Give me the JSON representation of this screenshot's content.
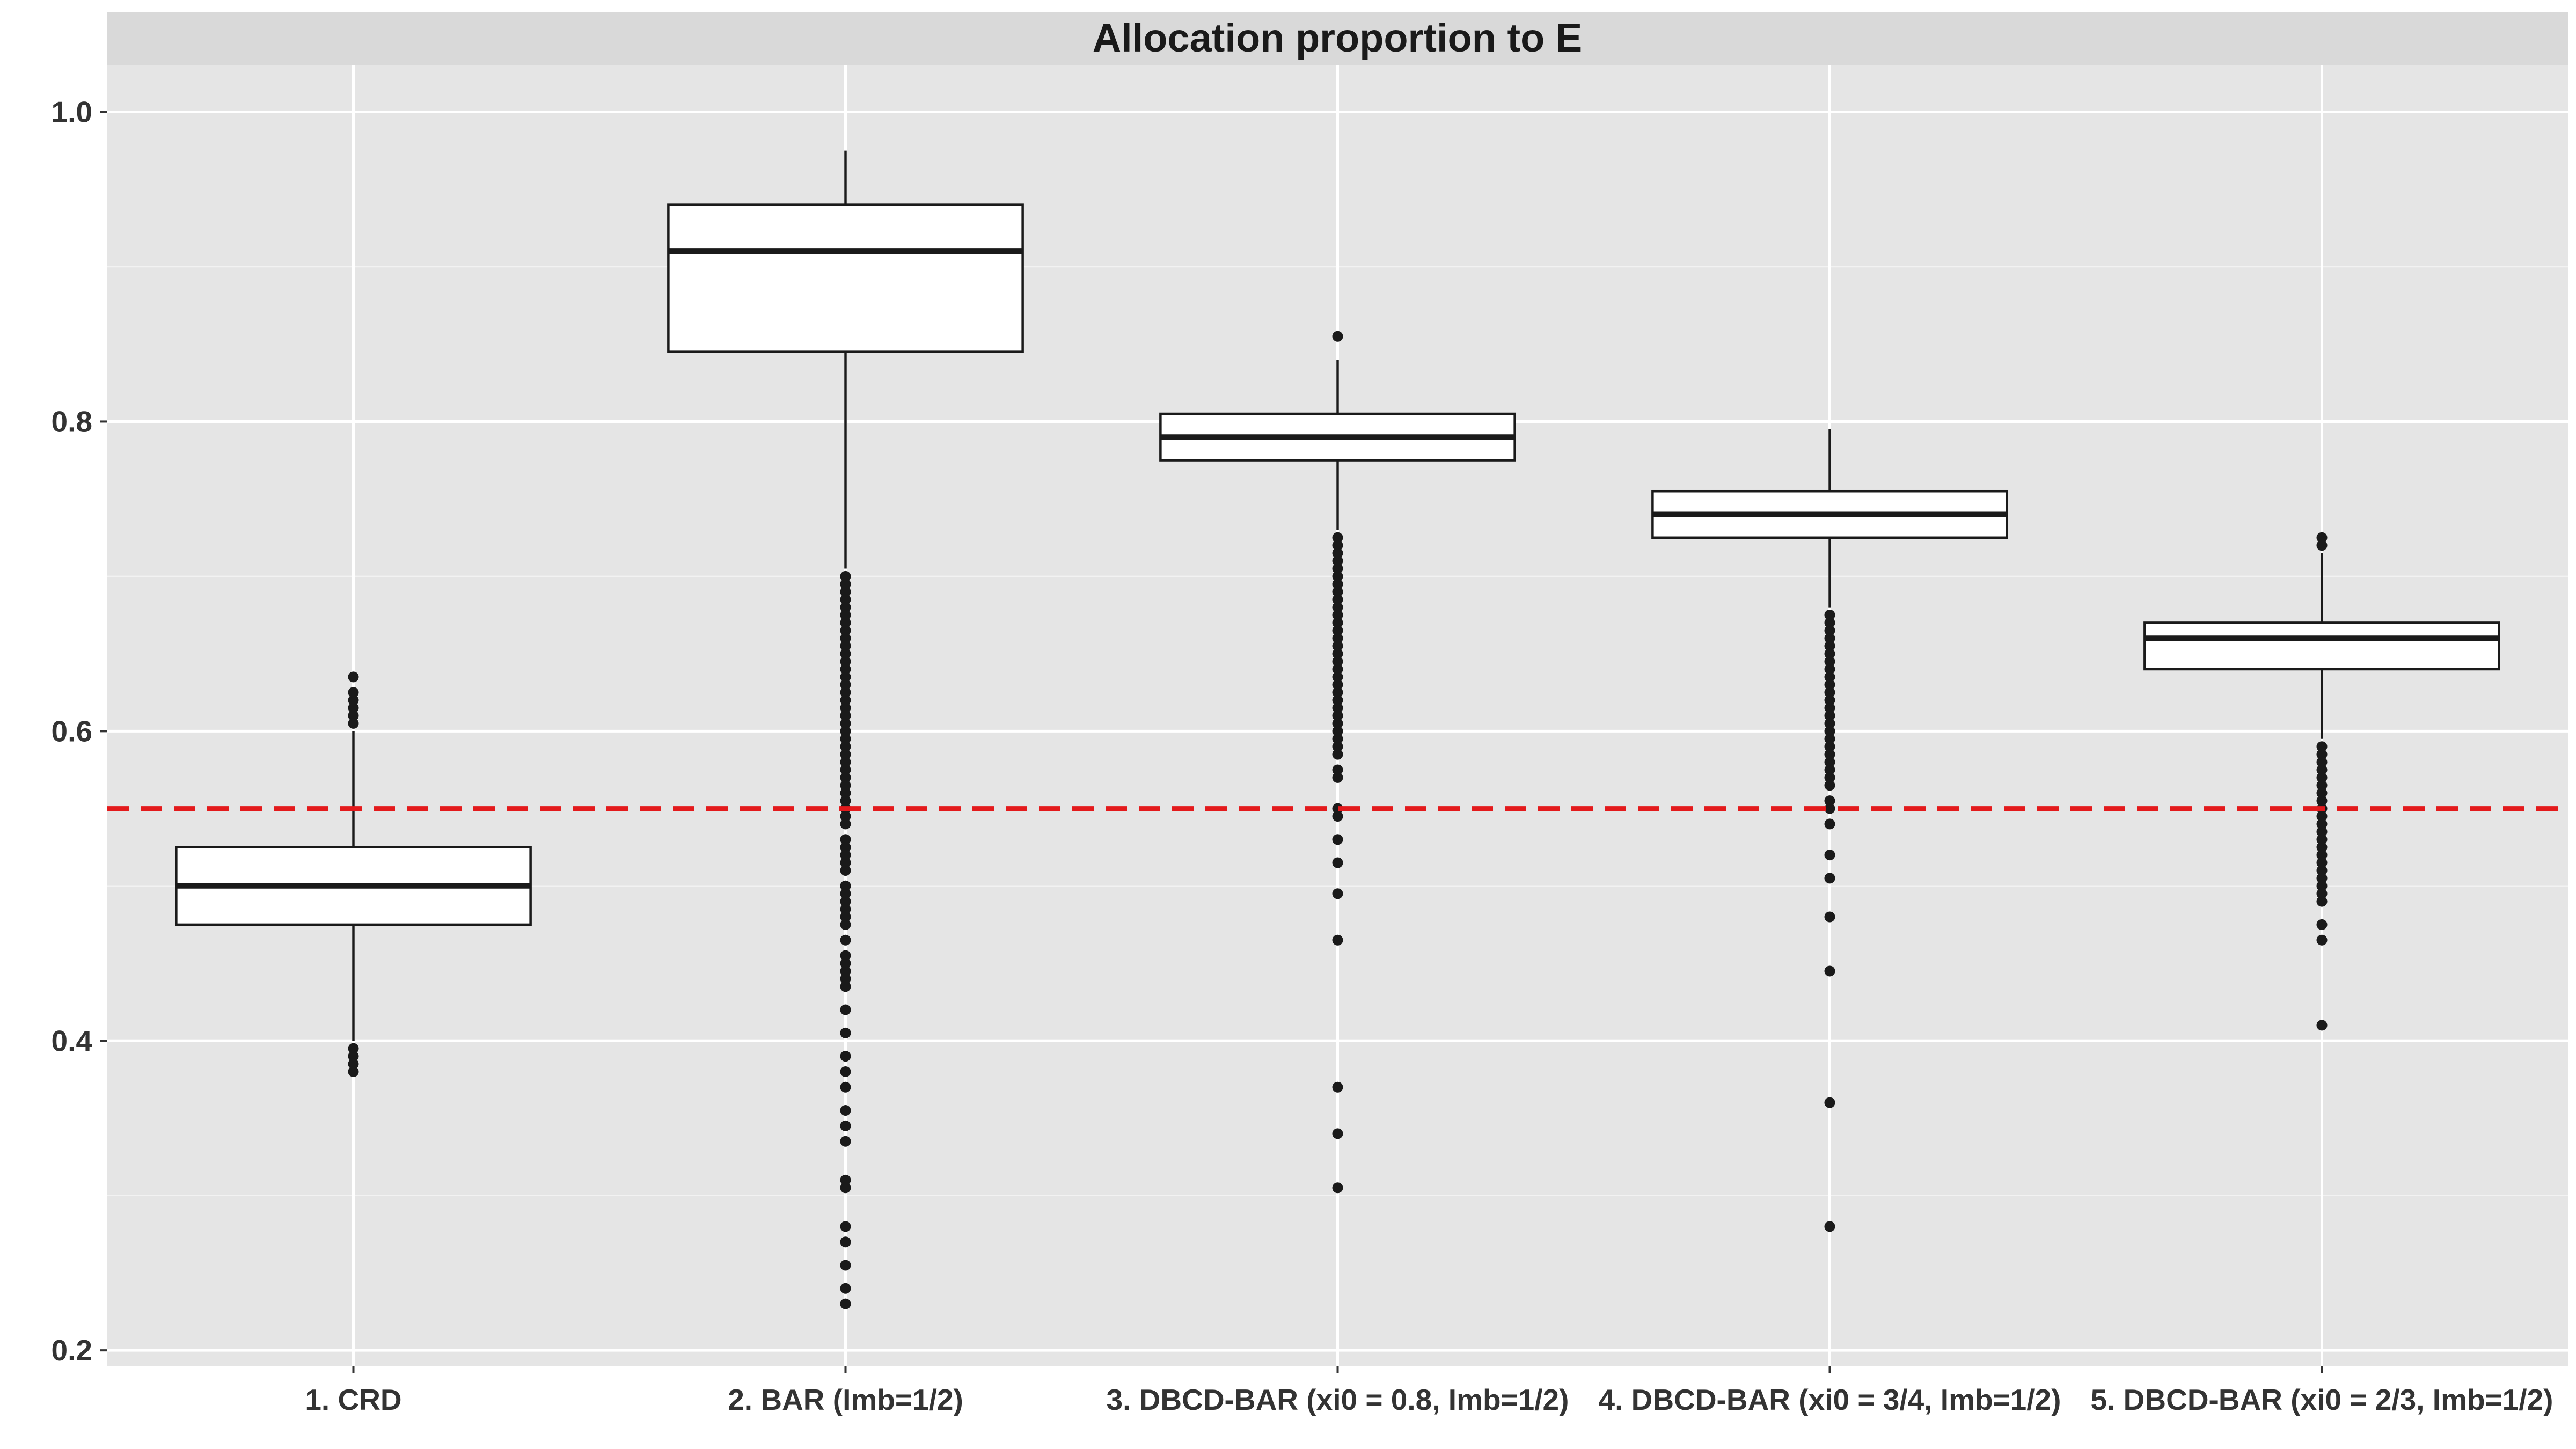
{
  "chart_data": {
    "type": "box",
    "title": "Allocation proportion to E",
    "xlabel": "",
    "ylabel": "",
    "ylim": [
      0.19,
      1.03
    ],
    "yticks": [
      0.2,
      0.4,
      0.6,
      0.8,
      1.0
    ],
    "ytick_labels": [
      "0.2",
      "0.4",
      "0.6",
      "0.8",
      "1.0"
    ],
    "grid": true,
    "reference_line": {
      "y": 0.55,
      "color": "#e31a1c",
      "style": "dashed"
    },
    "categories": [
      "1. CRD",
      "2. BAR (Imb=1/2)",
      "3. DBCD-BAR (xi0 = 0.8, Imb=1/2)",
      "4. DBCD-BAR (xi0 = 3/4, Imb=1/2)",
      "5. DBCD-BAR (xi0 = 2/3, Imb=1/2)"
    ],
    "boxes": [
      {
        "category": "1. CRD",
        "whisker_low": 0.4,
        "q1": 0.475,
        "median": 0.5,
        "q3": 0.525,
        "whisker_high": 0.6,
        "outliers": [
          0.38,
          0.385,
          0.39,
          0.395,
          0.605,
          0.61,
          0.615,
          0.62,
          0.625,
          0.635
        ]
      },
      {
        "category": "2. BAR (Imb=1/2)",
        "whisker_low": 0.705,
        "q1": 0.845,
        "median": 0.91,
        "q3": 0.94,
        "whisker_high": 0.975,
        "outliers": [
          0.7,
          0.695,
          0.69,
          0.685,
          0.68,
          0.675,
          0.67,
          0.665,
          0.66,
          0.655,
          0.65,
          0.645,
          0.64,
          0.635,
          0.63,
          0.625,
          0.62,
          0.615,
          0.61,
          0.605,
          0.6,
          0.595,
          0.59,
          0.585,
          0.58,
          0.575,
          0.57,
          0.565,
          0.56,
          0.555,
          0.55,
          0.545,
          0.54,
          0.53,
          0.525,
          0.52,
          0.515,
          0.51,
          0.5,
          0.495,
          0.49,
          0.485,
          0.48,
          0.475,
          0.465,
          0.455,
          0.45,
          0.445,
          0.44,
          0.435,
          0.42,
          0.405,
          0.39,
          0.38,
          0.37,
          0.355,
          0.345,
          0.335,
          0.31,
          0.305,
          0.28,
          0.27,
          0.255,
          0.24,
          0.23
        ]
      },
      {
        "category": "3. DBCD-BAR (xi0 = 0.8, Imb=1/2)",
        "whisker_low": 0.73,
        "q1": 0.775,
        "median": 0.79,
        "q3": 0.805,
        "whisker_high": 0.84,
        "outliers": [
          0.855,
          0.725,
          0.72,
          0.715,
          0.71,
          0.705,
          0.7,
          0.695,
          0.69,
          0.685,
          0.68,
          0.675,
          0.67,
          0.665,
          0.66,
          0.655,
          0.65,
          0.645,
          0.64,
          0.635,
          0.63,
          0.625,
          0.62,
          0.615,
          0.61,
          0.605,
          0.6,
          0.595,
          0.59,
          0.585,
          0.575,
          0.57,
          0.55,
          0.545,
          0.53,
          0.515,
          0.495,
          0.465,
          0.37,
          0.34,
          0.305
        ]
      },
      {
        "category": "4. DBCD-BAR (xi0 = 3/4, Imb=1/2)",
        "whisker_low": 0.68,
        "q1": 0.725,
        "median": 0.74,
        "q3": 0.755,
        "whisker_high": 0.795,
        "outliers": [
          0.675,
          0.67,
          0.665,
          0.66,
          0.655,
          0.65,
          0.645,
          0.64,
          0.635,
          0.63,
          0.625,
          0.62,
          0.615,
          0.61,
          0.605,
          0.6,
          0.595,
          0.59,
          0.585,
          0.58,
          0.575,
          0.57,
          0.565,
          0.555,
          0.55,
          0.54,
          0.52,
          0.505,
          0.48,
          0.445,
          0.36,
          0.28
        ]
      },
      {
        "category": "5. DBCD-BAR (xi0 = 2/3, Imb=1/2)",
        "whisker_low": 0.595,
        "q1": 0.64,
        "median": 0.66,
        "q3": 0.67,
        "whisker_high": 0.715,
        "outliers": [
          0.725,
          0.72,
          0.59,
          0.585,
          0.58,
          0.575,
          0.57,
          0.565,
          0.56,
          0.555,
          0.55,
          0.545,
          0.54,
          0.535,
          0.53,
          0.525,
          0.52,
          0.515,
          0.51,
          0.505,
          0.5,
          0.495,
          0.49,
          0.475,
          0.465,
          0.41
        ]
      }
    ]
  }
}
